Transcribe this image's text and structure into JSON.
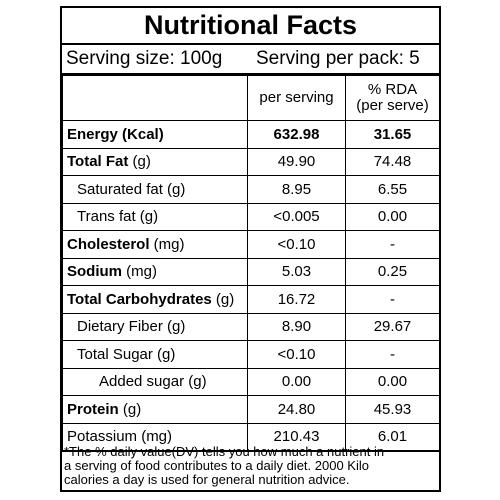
{
  "title": "Nutritional Facts",
  "serving": {
    "size": "Serving size: 100g",
    "per_pack": "Serving per pack: 5"
  },
  "columns": {
    "per_serving": "per serving",
    "rda_line1": "% RDA",
    "rda_line2": "(per serve)"
  },
  "rows": [
    {
      "name_bold": "Energy (Kcal)",
      "name_rest": "",
      "per_serving": "632.98",
      "rda": "31.65",
      "level": 0,
      "strong": true
    },
    {
      "name_bold": "Total Fat",
      "name_rest": " (g)",
      "per_serving": "49.90",
      "rda": "74.48",
      "level": 0,
      "strong": false
    },
    {
      "name_bold": "",
      "name_rest": "Saturated fat (g)",
      "per_serving": "8.95",
      "rda": "6.55",
      "level": 1,
      "strong": false
    },
    {
      "name_bold": "",
      "name_rest": "Trans fat (g)",
      "per_serving": "<0.005",
      "rda": "0.00",
      "level": 1,
      "strong": false
    },
    {
      "name_bold": "Cholesterol",
      "name_rest": " (mg)",
      "per_serving": "<0.10",
      "rda": "-",
      "level": 0,
      "strong": false
    },
    {
      "name_bold": "Sodium",
      "name_rest": " (mg)",
      "per_serving": "5.03",
      "rda": "0.25",
      "level": 0,
      "strong": false
    },
    {
      "name_bold": "Total Carbohydrates",
      "name_rest": " (g)",
      "per_serving": "16.72",
      "rda": "-",
      "level": 0,
      "strong": false
    },
    {
      "name_bold": "",
      "name_rest": "Dietary Fiber (g)",
      "per_serving": "8.90",
      "rda": "29.67",
      "level": 1,
      "strong": false
    },
    {
      "name_bold": "",
      "name_rest": "Total Sugar (g)",
      "per_serving": "<0.10",
      "rda": "-",
      "level": 1,
      "strong": false
    },
    {
      "name_bold": "",
      "name_rest": "Added sugar (g)",
      "per_serving": "0.00",
      "rda": "0.00",
      "level": 2,
      "strong": false
    },
    {
      "name_bold": "Protein",
      "name_rest": " (g)",
      "per_serving": "24.80",
      "rda": "45.93",
      "level": 0,
      "strong": false
    },
    {
      "name_bold": "",
      "name_rest": "Potassium (mg)",
      "per_serving": "210.43",
      "rda": "6.01",
      "level": 0,
      "strong": false
    }
  ],
  "footnote": {
    "line1": "*The % daily value(DV) tells you how much a nutrient in",
    "line2": "a serving of food contributes to a daily diet. 2000 Kilo",
    "line3": "calories a day is used for general nutrition advice."
  }
}
